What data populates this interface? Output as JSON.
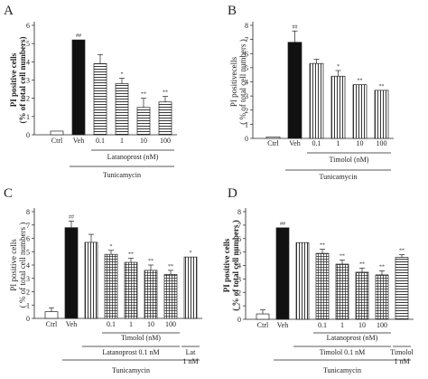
{
  "chart_data": [
    {
      "panel": "A",
      "type": "bar",
      "ylabel": [
        "PI positive cells",
        "(% of total cell numbers)"
      ],
      "ylabel_bold": true,
      "ylim": [
        0,
        6
      ],
      "yticks": [
        0,
        1,
        2,
        3,
        4,
        5,
        6
      ],
      "categories": [
        "Ctrl",
        "Veh",
        "0.1",
        "1",
        "10",
        "100"
      ],
      "values": [
        0.2,
        5.2,
        3.9,
        2.8,
        1.5,
        1.8
      ],
      "errors": [
        0,
        0,
        0.5,
        0.3,
        0.5,
        0.3
      ],
      "patterns": [
        "white",
        "black",
        "hlines",
        "hlines",
        "hlines",
        "hlines"
      ],
      "annotations": [
        "",
        "##",
        "",
        "*",
        "**",
        "**"
      ],
      "group_labels": [
        {
          "text": "Latanoprost (nM)",
          "from": 2,
          "to": 5,
          "level": 1
        },
        {
          "text": "Tunicamycin",
          "from": 1,
          "to": 5,
          "level": 2
        }
      ]
    },
    {
      "panel": "B",
      "type": "bar",
      "ylabel": [
        "PI positivecells",
        "( % of total cell numbers )"
      ],
      "ylabel_bold": false,
      "ylim": [
        0,
        8
      ],
      "yticks": [
        0,
        1,
        2,
        3,
        4,
        5,
        6,
        7,
        8
      ],
      "categories": [
        "Ctrl",
        "Veh",
        "0.1",
        "1",
        "10",
        "100"
      ],
      "values": [
        0.1,
        6.8,
        5.3,
        4.4,
        3.8,
        3.4
      ],
      "errors": [
        0,
        0.8,
        0.3,
        0.4,
        0,
        0
      ],
      "patterns": [
        "white",
        "black",
        "vlines",
        "vlines",
        "vlines",
        "vlines"
      ],
      "annotations": [
        "",
        "##",
        "",
        "*",
        "**",
        "**"
      ],
      "group_labels": [
        {
          "text": "Timolol (nM)",
          "from": 2,
          "to": 5,
          "level": 1
        },
        {
          "text": "Tunicamycin",
          "from": 1,
          "to": 5,
          "level": 2
        }
      ]
    },
    {
      "panel": "C",
      "type": "bar",
      "ylabel": [
        "PI positive cells",
        "( % of total cell numbers )"
      ],
      "ylabel_bold": false,
      "ylim": [
        0,
        8
      ],
      "yticks": [
        0,
        1,
        2,
        3,
        4,
        5,
        6,
        7,
        8
      ],
      "categories": [
        "Ctrl",
        "Veh",
        "",
        "0.1",
        "1",
        "10",
        "100",
        ""
      ],
      "values": [
        0.5,
        6.8,
        5.7,
        4.8,
        4.2,
        3.6,
        3.3,
        4.6
      ],
      "errors": [
        0.3,
        0.5,
        0.6,
        0.3,
        0.3,
        0.4,
        0.3,
        0
      ],
      "patterns": [
        "white",
        "black",
        "vlines",
        "grid",
        "grid",
        "grid",
        "grid",
        "vlines"
      ],
      "annotations": [
        "",
        "##",
        "",
        "*",
        "**",
        "**",
        "**",
        "*"
      ],
      "group_labels": [
        {
          "text": "Timolol (nM)",
          "from": 3,
          "to": 6,
          "level": 1
        },
        {
          "text": "Latanoprost 0.1 nM",
          "from": 2,
          "to": 6,
          "level": 2
        },
        {
          "text": "Lat 1 nM",
          "from": 7,
          "to": 7,
          "level": 2
        },
        {
          "text": "Tunicamycin",
          "from": 1,
          "to": 7,
          "level": 3
        }
      ]
    },
    {
      "panel": "D",
      "type": "bar",
      "ylabel": [
        "PI positive cells",
        "( % of total cell numbers )"
      ],
      "ylabel_bold": true,
      "ylim": [
        0,
        8
      ],
      "yticks": [
        0,
        1,
        2,
        3,
        4,
        5,
        6,
        7,
        8
      ],
      "categories": [
        "Ctrl",
        "Veh",
        "",
        "0.1",
        "1",
        "10",
        "100",
        ""
      ],
      "values": [
        0.4,
        6.8,
        5.7,
        4.9,
        4.1,
        3.5,
        3.3,
        4.6
      ],
      "errors": [
        0.3,
        0,
        0,
        0.3,
        0.3,
        0.3,
        0.3,
        0.2
      ],
      "patterns": [
        "white",
        "black",
        "vlines",
        "grid",
        "grid",
        "grid",
        "grid",
        "hlines"
      ],
      "annotations": [
        "",
        "##",
        "",
        "**",
        "**",
        "**",
        "**",
        "**"
      ],
      "group_labels": [
        {
          "text": "Latanoprost (nM)",
          "from": 3,
          "to": 6,
          "level": 1
        },
        {
          "text": "Timolol 0.1 nM",
          "from": 2,
          "to": 6,
          "level": 2
        },
        {
          "text": "Timolol 1 nM",
          "from": 7,
          "to": 7,
          "level": 2
        },
        {
          "text": "Tunicamycin",
          "from": 1,
          "to": 7,
          "level": 3
        }
      ]
    }
  ]
}
